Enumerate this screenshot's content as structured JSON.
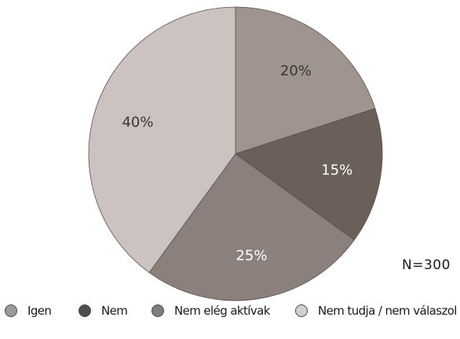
{
  "chart_data": {
    "type": "pie",
    "categories": [
      "Igen",
      "Nem",
      "Nem elég aktívak",
      "Nem tudja / nem válaszol"
    ],
    "values": [
      20,
      15,
      25,
      40
    ],
    "value_labels": [
      "20%",
      "15%",
      "25%",
      "40%"
    ],
    "slice_colors": [
      "#a0948f",
      "#6b5f5a",
      "#8b807c",
      "#ccc3c1"
    ],
    "label_colors": [
      "#3a3432",
      "#ffffff",
      "#ffffff",
      "#3a3432"
    ],
    "legend_colors": [
      "#9a9a9a",
      "#4e4e4e",
      "#7e7e7e",
      "#cfcfcf"
    ],
    "start_angle_deg": 0,
    "direction": "clockwise",
    "legend_position": "bottom",
    "annotation": "N=300"
  }
}
